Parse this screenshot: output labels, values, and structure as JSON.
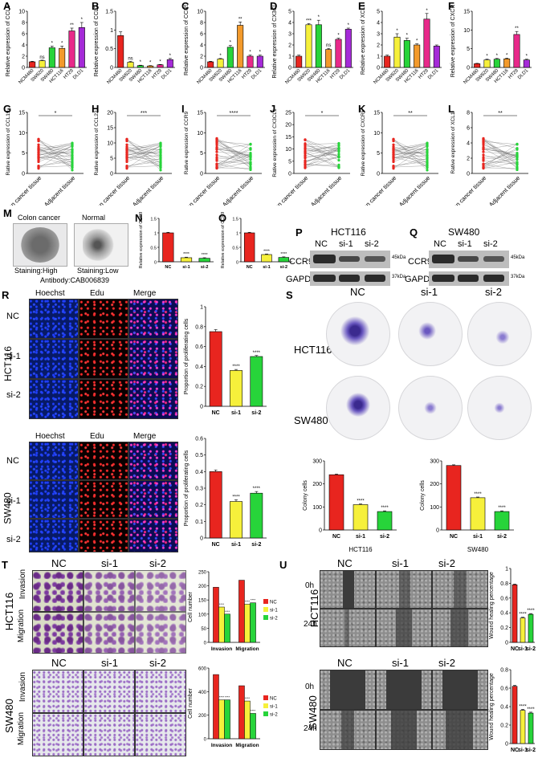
{
  "colors": {
    "red": "#e8251f",
    "yellow": "#f6f03b",
    "green": "#27d43a",
    "orange": "#f39a2b",
    "pink": "#e8298a",
    "purple": "#a52ad8"
  },
  "panel_letters": [
    "A",
    "B",
    "C",
    "D",
    "E",
    "F",
    "G",
    "H",
    "I",
    "J",
    "K",
    "L",
    "M",
    "N",
    "O",
    "P",
    "Q",
    "R",
    "S",
    "T",
    "U"
  ],
  "cell_lines": [
    "NCM460",
    "SW620",
    "SW480",
    "HCT116",
    "HT29",
    "DLD1"
  ],
  "chart_data": [
    {
      "panel": "A",
      "type": "bar",
      "ylabel": "Relative expression of CCL19",
      "ylim": [
        0,
        10
      ],
      "yticks": [
        0,
        2,
        4,
        6,
        8,
        10
      ],
      "categories": [
        "NCM460",
        "SW620",
        "SW480",
        "HCT116",
        "HT29",
        "DLD1"
      ],
      "values": [
        1.0,
        1.2,
        3.5,
        3.4,
        6.5,
        7.1
      ],
      "errors": [
        0.1,
        0.1,
        0.3,
        0.4,
        0.5,
        0.9
      ],
      "sig": [
        "",
        "ns",
        "*",
        "*",
        "**",
        "*"
      ],
      "colors": [
        "#e8251f",
        "#f6f03b",
        "#27d43a",
        "#f39a2b",
        "#e8298a",
        "#a52ad8"
      ]
    },
    {
      "panel": "B",
      "type": "bar",
      "ylabel": "Relative expression of CCL22",
      "ylim": [
        0,
        1.5
      ],
      "yticks": [
        0,
        0.5,
        1.0,
        1.5
      ],
      "categories": [
        "NCM460",
        "SW620",
        "SW480",
        "HCT116",
        "HT29",
        "DLD1"
      ],
      "values": [
        0.85,
        0.14,
        0.05,
        0.04,
        0.07,
        0.21
      ],
      "errors": [
        0.1,
        0.02,
        0.01,
        0.01,
        0.01,
        0.03
      ],
      "sig": [
        "",
        "ns",
        "*",
        "*",
        "*",
        "*"
      ],
      "colors": [
        "#e8251f",
        "#f6f03b",
        "#27d43a",
        "#f39a2b",
        "#e8298a",
        "#a52ad8"
      ]
    },
    {
      "panel": "C",
      "type": "bar",
      "ylabel": "Relative expression of CCR9",
      "ylim": [
        0,
        10
      ],
      "yticks": [
        0,
        2,
        4,
        6,
        8,
        10
      ],
      "categories": [
        "NCM460",
        "SW620",
        "SW480",
        "HCT116",
        "HT29",
        "DLD1"
      ],
      "values": [
        1.0,
        1.5,
        3.6,
        7.5,
        2.0,
        2.0
      ],
      "errors": [
        0.1,
        0.1,
        0.3,
        0.6,
        0.2,
        0.2
      ],
      "sig": [
        "",
        "*",
        "*",
        "**",
        "*",
        "*"
      ],
      "colors": [
        "#e8251f",
        "#f6f03b",
        "#27d43a",
        "#f39a2b",
        "#e8298a",
        "#a52ad8"
      ]
    },
    {
      "panel": "D",
      "type": "bar",
      "ylabel": "Relative expression of CX3CL1",
      "ylim": [
        0,
        5
      ],
      "yticks": [
        0,
        1,
        2,
        3,
        4,
        5
      ],
      "categories": [
        "NCM460",
        "SW620",
        "SW480",
        "HCT116",
        "HT29",
        "DLD1"
      ],
      "values": [
        1.0,
        3.8,
        3.8,
        1.6,
        2.5,
        3.4
      ],
      "errors": [
        0.1,
        0.1,
        0.4,
        0.1,
        0.1,
        0.1
      ],
      "sig": [
        "",
        "***",
        "*",
        "ns",
        "*",
        "*"
      ],
      "colors": [
        "#e8251f",
        "#f6f03b",
        "#27d43a",
        "#f39a2b",
        "#e8298a",
        "#a52ad8"
      ]
    },
    {
      "panel": "E",
      "type": "bar",
      "ylabel": "Relative expression of XCL1",
      "ylim": [
        0,
        5
      ],
      "yticks": [
        0,
        1,
        2,
        3,
        4,
        5
      ],
      "categories": [
        "NCM460",
        "SW620",
        "SW480",
        "HCT116",
        "HT29",
        "DLD1"
      ],
      "values": [
        1.0,
        2.7,
        2.4,
        2.0,
        4.3,
        1.9
      ],
      "errors": [
        0.1,
        0.3,
        0.2,
        0.1,
        0.5,
        0.1
      ],
      "sig": [
        "",
        "*",
        "*",
        "*",
        "*",
        ""
      ],
      "colors": [
        "#e8251f",
        "#f6f03b",
        "#27d43a",
        "#f39a2b",
        "#e8298a",
        "#a52ad8"
      ]
    },
    {
      "panel": "F",
      "type": "bar",
      "ylabel": "Relative expression of CXCR5",
      "ylim": [
        0,
        15
      ],
      "yticks": [
        0,
        5,
        10,
        15
      ],
      "categories": [
        "NCM460",
        "SW620",
        "SW480",
        "HCT116",
        "HT29",
        "DLD1"
      ],
      "values": [
        1.0,
        2.0,
        2.2,
        2.3,
        8.8,
        2.0
      ],
      "errors": [
        0.1,
        0.2,
        0.2,
        0.2,
        0.8,
        0.2
      ],
      "sig": [
        "",
        "*",
        "*",
        "*",
        "**",
        "*"
      ],
      "colors": [
        "#e8251f",
        "#f6f03b",
        "#27d43a",
        "#f39a2b",
        "#e8298a",
        "#a52ad8"
      ]
    },
    {
      "panel": "N",
      "type": "bar",
      "ylabel": "Relative expression of CCR9",
      "ylim": [
        0,
        1.5
      ],
      "yticks": [
        0,
        0.5,
        1.0,
        1.5
      ],
      "categories": [
        "NC",
        "si-1",
        "si-2"
      ],
      "values": [
        1.0,
        0.14,
        0.12
      ],
      "errors": [
        0.02,
        0.02,
        0.02
      ],
      "sig": [
        "",
        "****",
        "****"
      ],
      "colors": [
        "#e8251f",
        "#f6f03b",
        "#27d43a"
      ]
    },
    {
      "panel": "O",
      "type": "bar",
      "ylabel": "Relative expression of CCR9",
      "ylim": [
        0,
        1.5
      ],
      "yticks": [
        0,
        0.5,
        1.0,
        1.5
      ],
      "categories": [
        "NC",
        "si-1",
        "si-2"
      ],
      "values": [
        1.0,
        0.25,
        0.15
      ],
      "errors": [
        0.02,
        0.02,
        0.02
      ],
      "sig": [
        "",
        "****",
        "****"
      ],
      "colors": [
        "#e8251f",
        "#f6f03b",
        "#27d43a"
      ]
    },
    {
      "panel": "R-HCT116",
      "type": "bar",
      "ylabel": "Proportion of proliferating cells",
      "ylim": [
        0,
        1.0
      ],
      "yticks": [
        0,
        0.2,
        0.4,
        0.6,
        0.8,
        1.0
      ],
      "categories": [
        "NC",
        "si-1",
        "si-2"
      ],
      "values": [
        0.75,
        0.36,
        0.5
      ],
      "errors": [
        0.02,
        0.01,
        0.01
      ],
      "sig": [
        "",
        "****",
        "****"
      ],
      "colors": [
        "#e8251f",
        "#f6f03b",
        "#27d43a"
      ]
    },
    {
      "panel": "R-SW480",
      "type": "bar",
      "ylabel": "Proportion of proliferating cells",
      "ylim": [
        0,
        0.6
      ],
      "yticks": [
        0,
        0.1,
        0.2,
        0.3,
        0.4,
        0.5,
        0.6
      ],
      "categories": [
        "NC",
        "si-1",
        "si-2"
      ],
      "values": [
        0.4,
        0.22,
        0.27
      ],
      "errors": [
        0.01,
        0.01,
        0.01
      ],
      "sig": [
        "",
        "****",
        "****"
      ],
      "colors": [
        "#e8251f",
        "#f6f03b",
        "#27d43a"
      ]
    },
    {
      "panel": "S-HCT116",
      "type": "bar",
      "ylabel": "Colony cells",
      "xlabel": "HCT116",
      "ylim": [
        0,
        300
      ],
      "yticks": [
        0,
        100,
        200,
        300
      ],
      "categories": [
        "NC",
        "si-1",
        "si-2"
      ],
      "values": [
        240,
        110,
        80
      ],
      "errors": [
        3,
        3,
        3
      ],
      "sig": [
        "",
        "****",
        "****"
      ],
      "colors": [
        "#e8251f",
        "#f6f03b",
        "#27d43a"
      ]
    },
    {
      "panel": "S-SW480",
      "type": "bar",
      "ylabel": "Colony cells",
      "xlabel": "SW480",
      "ylim": [
        0,
        300
      ],
      "yticks": [
        0,
        100,
        200,
        300
      ],
      "categories": [
        "NC",
        "si-1",
        "si-2"
      ],
      "values": [
        280,
        140,
        80
      ],
      "errors": [
        3,
        3,
        3
      ],
      "sig": [
        "",
        "****",
        "****"
      ],
      "colors": [
        "#e8251f",
        "#f6f03b",
        "#27d43a"
      ]
    },
    {
      "panel": "T-HCT116",
      "type": "grouped-bar",
      "ylabel": "Cell number",
      "ylim": [
        0,
        250
      ],
      "yticks": [
        0,
        50,
        100,
        150,
        200,
        250
      ],
      "categories": [
        "Invasion",
        "Migration"
      ],
      "series": [
        {
          "name": "NC",
          "values": [
            195,
            220
          ],
          "color": "#e8251f"
        },
        {
          "name": "si-1",
          "values": [
            125,
            135
          ],
          "color": "#f6f03b"
        },
        {
          "name": "si-2",
          "values": [
            100,
            140
          ],
          "color": "#27d43a"
        }
      ],
      "sig": [
        "****",
        "****"
      ]
    },
    {
      "panel": "T-SW480",
      "type": "grouped-bar",
      "ylabel": "Cell number",
      "ylim": [
        0,
        600
      ],
      "yticks": [
        0,
        200,
        400,
        600
      ],
      "categories": [
        "Invasion",
        "Migration"
      ],
      "series": [
        {
          "name": "NC",
          "values": [
            545,
            450
          ],
          "color": "#e8251f"
        },
        {
          "name": "si-1",
          "values": [
            330,
            320
          ],
          "color": "#f6f03b"
        },
        {
          "name": "si-2",
          "values": [
            330,
            215
          ],
          "color": "#27d43a"
        }
      ],
      "sig": [
        "****",
        "****"
      ]
    },
    {
      "panel": "U-HCT116",
      "type": "bar",
      "ylabel": "Wound healing percentage",
      "ylim": [
        0,
        1.0
      ],
      "yticks": [
        0,
        0.2,
        0.4,
        0.6,
        0.8,
        1.0
      ],
      "categories": [
        "NC",
        "si-1",
        "si-2"
      ],
      "values": [
        0.78,
        0.33,
        0.38
      ],
      "errors": [
        0.01,
        0.01,
        0.01
      ],
      "sig": [
        "",
        "****",
        "****"
      ],
      "colors": [
        "#e8251f",
        "#f6f03b",
        "#27d43a"
      ]
    },
    {
      "panel": "U-SW480",
      "type": "bar",
      "ylabel": "Wound healing percentage",
      "ylim": [
        0,
        0.8
      ],
      "yticks": [
        0,
        0.2,
        0.4,
        0.6,
        0.8
      ],
      "categories": [
        "NC",
        "si-1",
        "si-2"
      ],
      "values": [
        0.62,
        0.36,
        0.33
      ],
      "errors": [
        0.01,
        0.01,
        0.01
      ],
      "sig": [
        "",
        "****",
        "****"
      ],
      "colors": [
        "#e8251f",
        "#f6f03b",
        "#27d43a"
      ]
    },
    {
      "panel": "G",
      "type": "paired",
      "ylabel": "Rative expression of CCL19",
      "ylim": [
        0,
        15
      ],
      "yticks": [
        0,
        5,
        10,
        15
      ],
      "categories": [
        "Colon cancer tissue",
        "Adjacent tissue"
      ],
      "sig": "*"
    },
    {
      "panel": "H",
      "type": "paired",
      "ylabel": "Rative expression of CCL22",
      "ylim": [
        0,
        20
      ],
      "yticks": [
        0,
        5,
        10,
        15,
        20
      ],
      "categories": [
        "Colon cancer tissue",
        "Adjacent tissue"
      ],
      "sig": "***"
    },
    {
      "panel": "I",
      "type": "paired",
      "ylabel": "Rative expression of CCR9",
      "ylim": [
        0,
        15
      ],
      "yticks": [
        0,
        5,
        10,
        15
      ],
      "categories": [
        "Colon cancer tissue",
        "Adjacent tissue"
      ],
      "sig": "****"
    },
    {
      "panel": "J",
      "type": "paired",
      "ylabel": "Rative expression of CX3CL1",
      "ylim": [
        0,
        25
      ],
      "yticks": [
        0,
        5,
        10,
        15,
        20,
        25
      ],
      "categories": [
        "Colon cancer tissue",
        "Adjacent tissue"
      ],
      "sig": "*"
    },
    {
      "panel": "K",
      "type": "paired",
      "ylabel": "Rative expression of CXCR5",
      "ylim": [
        0,
        15
      ],
      "yticks": [
        0,
        5,
        10,
        15
      ],
      "categories": [
        "Colon cancer tissue",
        "Adjacent tissue"
      ],
      "sig": "**"
    },
    {
      "panel": "L",
      "type": "paired",
      "ylabel": "Rative expression of XCL1",
      "ylim": [
        0,
        8
      ],
      "yticks": [
        0,
        2,
        4,
        6,
        8
      ],
      "categories": [
        "Colon cancer tissue",
        "Adjacent tissue"
      ],
      "sig": "**"
    }
  ],
  "M": {
    "labels": [
      "Colon cancer",
      "Normal"
    ],
    "staining": [
      "Staining:High",
      "Staining:Low"
    ],
    "antibody": "Antibody:CAB006839"
  },
  "P": {
    "title": "HCT116",
    "lanes": [
      "NC",
      "si-1",
      "si-2"
    ],
    "rows": [
      "CCR9",
      "GAPDH"
    ],
    "kda": [
      "45kDa",
      "37kDa"
    ]
  },
  "Q": {
    "title": "SW480",
    "lanes": [
      "NC",
      "si-1",
      "si-2"
    ],
    "rows": [
      "CCR9",
      "GAPDH"
    ],
    "kda": [
      "45kDa",
      "37kDa"
    ]
  },
  "R": {
    "cols": [
      "Hoechst",
      "Edu",
      "Merge"
    ],
    "rows": [
      "NC",
      "si-1",
      "si-2"
    ],
    "lines": [
      "HCT116",
      "SW480"
    ]
  },
  "S": {
    "cols": [
      "NC",
      "si-1",
      "si-2"
    ],
    "lines": [
      "HCT116",
      "SW480"
    ]
  },
  "T": {
    "cols": [
      "NC",
      "si-1",
      "si-2"
    ],
    "rows": [
      "Invasion",
      "Migration"
    ],
    "lines": [
      "HCT116",
      "SW480"
    ],
    "legend": [
      "NC",
      "si-1",
      "si-2"
    ]
  },
  "U": {
    "cols": [
      "NC",
      "si-1",
      "si-2"
    ],
    "rows": [
      "0h",
      "24h"
    ],
    "lines": [
      "HCT116",
      "SW480"
    ]
  }
}
